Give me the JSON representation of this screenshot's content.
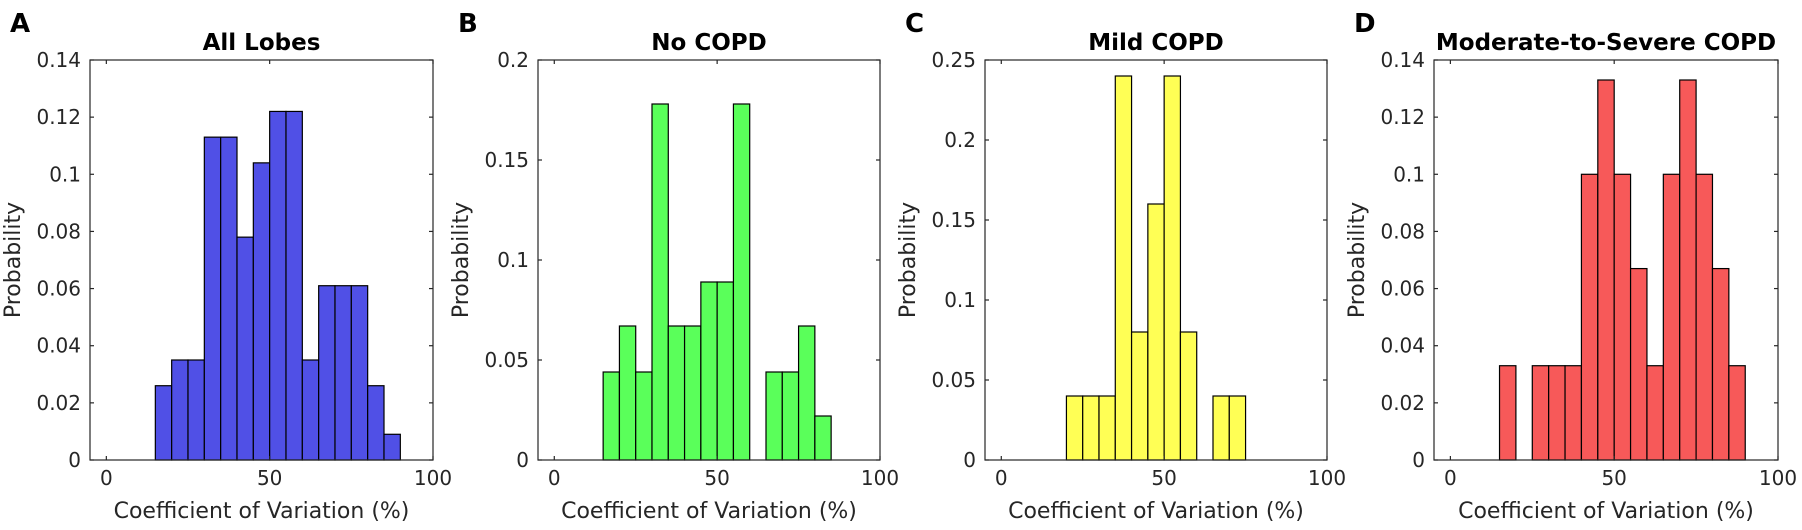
{
  "chart_data": [
    {
      "type": "bar",
      "panel_label": "A",
      "title": "All Lobes",
      "xlabel": "Coefficient of Variation (%)",
      "ylabel": "Probability",
      "xlim": [
        -5,
        100
      ],
      "ylim": [
        0,
        0.14
      ],
      "bin_width": 5,
      "color": "#5050e6",
      "xticks": [
        0,
        50,
        100
      ],
      "yticks": [
        0,
        0.02,
        0.04,
        0.06,
        0.08,
        0.1,
        0.12,
        0.14
      ],
      "ytick_labels": [
        "0",
        "0.02",
        "0.04",
        "0.06",
        "0.08",
        "0.1",
        "0.12",
        "0.14"
      ],
      "bin_starts": [
        15,
        20,
        25,
        30,
        35,
        40,
        45,
        50,
        55,
        60,
        65,
        70,
        75,
        80,
        85
      ],
      "values": [
        0.026,
        0.035,
        0.035,
        0.113,
        0.113,
        0.078,
        0.104,
        0.122,
        0.122,
        0.035,
        0.061,
        0.061,
        0.061,
        0.026,
        0.009
      ]
    },
    {
      "type": "bar",
      "panel_label": "B",
      "title": "No COPD",
      "xlabel": "Coefficient of Variation (%)",
      "ylabel": "Probability",
      "xlim": [
        -5,
        100
      ],
      "ylim": [
        0,
        0.2
      ],
      "bin_width": 5,
      "color": "#5aff5a",
      "xticks": [
        0,
        50,
        100
      ],
      "yticks": [
        0,
        0.05,
        0.1,
        0.15,
        0.2
      ],
      "ytick_labels": [
        "0",
        "0.05",
        "0.1",
        "0.15",
        "0.2"
      ],
      "bin_starts": [
        15,
        20,
        25,
        30,
        35,
        40,
        45,
        50,
        55,
        65,
        70,
        75,
        80
      ],
      "values": [
        0.044,
        0.067,
        0.044,
        0.178,
        0.067,
        0.067,
        0.089,
        0.089,
        0.178,
        0.044,
        0.044,
        0.067,
        0.022
      ]
    },
    {
      "type": "bar",
      "panel_label": "C",
      "title": "Mild COPD",
      "xlabel": "Coefficient of Variation (%)",
      "ylabel": "Probability",
      "xlim": [
        -5,
        100
      ],
      "ylim": [
        0,
        0.25
      ],
      "bin_width": 5,
      "color": "#ffff55",
      "xticks": [
        0,
        50,
        100
      ],
      "yticks": [
        0,
        0.05,
        0.1,
        0.15,
        0.2,
        0.25
      ],
      "ytick_labels": [
        "0",
        "0.05",
        "0.1",
        "0.15",
        "0.2",
        "0.25"
      ],
      "bin_starts": [
        20,
        25,
        30,
        35,
        40,
        45,
        50,
        55,
        65,
        70
      ],
      "values": [
        0.04,
        0.04,
        0.04,
        0.24,
        0.08,
        0.16,
        0.24,
        0.08,
        0.04,
        0.04
      ]
    },
    {
      "type": "bar",
      "panel_label": "D",
      "title": "Moderate-to-Severe COPD",
      "xlabel": "Coefficient of Variation (%)",
      "ylabel": "Probability",
      "xlim": [
        -5,
        100
      ],
      "ylim": [
        0,
        0.14
      ],
      "bin_width": 5,
      "color": "#f75959",
      "xticks": [
        0,
        50,
        100
      ],
      "yticks": [
        0,
        0.02,
        0.04,
        0.06,
        0.08,
        0.1,
        0.12,
        0.14
      ],
      "ytick_labels": [
        "0",
        "0.02",
        "0.04",
        "0.06",
        "0.08",
        "0.1",
        "0.12",
        "0.14"
      ],
      "bin_starts": [
        15,
        25,
        30,
        35,
        40,
        45,
        50,
        55,
        60,
        65,
        70,
        75,
        80,
        85
      ],
      "values": [
        0.033,
        0.033,
        0.033,
        0.033,
        0.1,
        0.133,
        0.1,
        0.067,
        0.033,
        0.1,
        0.133,
        0.1,
        0.067,
        0.033
      ]
    }
  ]
}
